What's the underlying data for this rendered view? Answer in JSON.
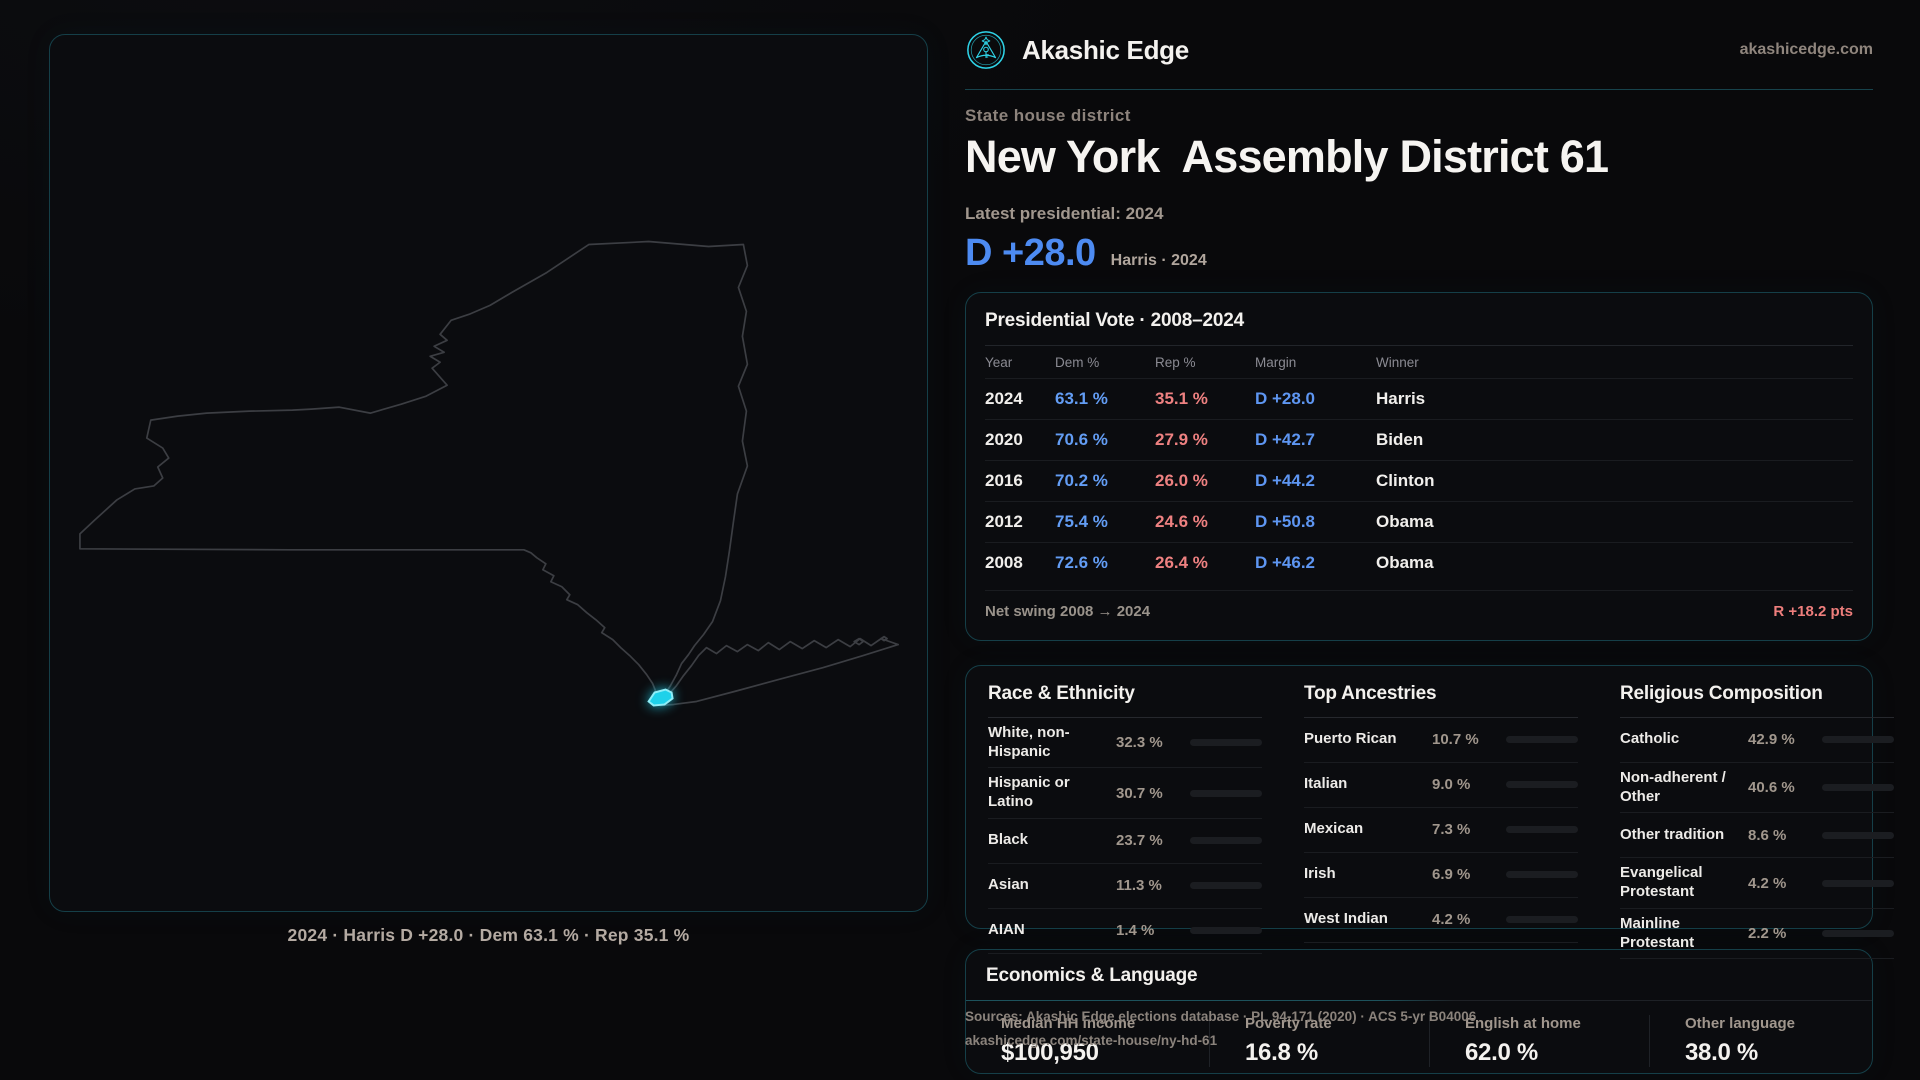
{
  "brand": {
    "name": "Akashic Edge",
    "domain": "akashicedge.com",
    "accent": "#2fd4e8"
  },
  "hero": {
    "kicker": "State house district",
    "title_a": "New York",
    "title_b": "Assembly District 61",
    "latest": "Latest presidential: 2024",
    "margin": "D +28.0",
    "margin_note": "Harris · 2024"
  },
  "map": {
    "caption": "2024 · Harris D +28.0 · Dem 63.1 % · Rep 35.1 %",
    "district_color": "#22d3ee",
    "outline_color": "#3c3e43"
  },
  "vote": {
    "title": "Presidential Vote · 2008–2024",
    "columns": {
      "year": "Year",
      "dem": "Dem %",
      "rep": "Rep %",
      "margin": "Margin",
      "winner": "Winner"
    },
    "rows": [
      {
        "year": "2024",
        "dem": "63.1 %",
        "rep": "35.1 %",
        "margin": "D +28.0",
        "winner": "Harris"
      },
      {
        "year": "2020",
        "dem": "70.6 %",
        "rep": "27.9 %",
        "margin": "D +42.7",
        "winner": "Biden"
      },
      {
        "year": "2016",
        "dem": "70.2 %",
        "rep": "26.0 %",
        "margin": "D +44.2",
        "winner": "Clinton"
      },
      {
        "year": "2012",
        "dem": "75.4 %",
        "rep": "24.6 %",
        "margin": "D +50.8",
        "winner": "Obama"
      },
      {
        "year": "2008",
        "dem": "72.6 %",
        "rep": "26.4 %",
        "margin": "D +46.2",
        "winner": "Obama"
      }
    ],
    "swing_label": "Net swing 2008 → 2024",
    "swing_value": "R +18.2 pts"
  },
  "demographics": {
    "race": {
      "title": "Race & Ethnicity",
      "rows": [
        {
          "label": "White, non-Hispanic",
          "value": "32.3 %",
          "pct": 32.3,
          "color": "#96a1bf"
        },
        {
          "label": "Hispanic or Latino",
          "value": "30.7 %",
          "pct": 30.7,
          "color": "#e4a23d"
        },
        {
          "label": "Black",
          "value": "23.7 %",
          "pct": 23.7,
          "color": "#9c8df2"
        },
        {
          "label": "Asian",
          "value": "11.3 %",
          "pct": 11.3,
          "color": "#2fbf8f"
        },
        {
          "label": "AIAN",
          "value": "1.4 %",
          "pct": 1.4,
          "color": "#b25d22"
        }
      ]
    },
    "ancestry": {
      "title": "Top Ancestries",
      "rows": [
        {
          "label": "Puerto Rican",
          "value": "10.7 %",
          "pct": 10.7,
          "color": "#e4a23d"
        },
        {
          "label": "Italian",
          "value": "9.0 %",
          "pct": 9.0,
          "color": "#8fb3cf"
        },
        {
          "label": "Mexican",
          "value": "7.3 %",
          "pct": 7.3,
          "color": "#e4a23d"
        },
        {
          "label": "Irish",
          "value": "6.9 %",
          "pct": 6.9,
          "color": "#8fb3cf"
        },
        {
          "label": "West Indian",
          "value": "4.2 %",
          "pct": 4.2,
          "color": "#8f7ff0"
        }
      ]
    },
    "religion": {
      "title": "Religious Composition",
      "rows": [
        {
          "label": "Catholic",
          "value": "42.9 %",
          "pct": 42.9,
          "color": "#dfaf2e"
        },
        {
          "label": "Non-adherent / Other",
          "value": "40.6 %",
          "pct": 40.6,
          "color": "#7d8799"
        },
        {
          "label": "Other tradition",
          "value": "8.6 %",
          "pct": 8.6,
          "color": "#97a0ae"
        },
        {
          "label": "Evangelical Protestant",
          "value": "4.2 %",
          "pct": 4.2,
          "color": "#e2605e"
        },
        {
          "label": "Mainline Protestant",
          "value": "2.2 %",
          "pct": 2.2,
          "color": "#3f87e8"
        }
      ]
    }
  },
  "economics": {
    "title": "Economics & Language",
    "stats": [
      {
        "label": "Median HH income",
        "value": "$100,950"
      },
      {
        "label": "Poverty rate",
        "value": "16.8 %"
      },
      {
        "label": "English at home",
        "value": "62.0 %"
      },
      {
        "label": "Other language",
        "value": "38.0 %"
      }
    ]
  },
  "sources": {
    "line1": "Sources: Akashic Edge elections database · PL 94-171 (2020) · ACS 5-yr B04006",
    "line2": "akashicedge.com/state-house/ny-hd-61"
  },
  "chart_data": [
    {
      "type": "table",
      "title": "Presidential Vote · 2008–2024",
      "columns": [
        "Year",
        "Dem %",
        "Rep %",
        "Margin",
        "Winner"
      ],
      "rows": [
        [
          "2024",
          63.1,
          35.1,
          "D +28.0",
          "Harris"
        ],
        [
          "2020",
          70.6,
          27.9,
          "D +42.7",
          "Biden"
        ],
        [
          "2016",
          70.2,
          26.0,
          "D +44.2",
          "Clinton"
        ],
        [
          "2012",
          75.4,
          24.6,
          "D +50.8",
          "Obama"
        ],
        [
          "2008",
          72.6,
          26.4,
          "D +46.2",
          "Obama"
        ]
      ],
      "footer": {
        "label": "Net swing 2008 → 2024",
        "value": "R +18.2 pts"
      }
    },
    {
      "type": "bar",
      "title": "Race & Ethnicity",
      "categories": [
        "White, non-Hispanic",
        "Hispanic or Latino",
        "Black",
        "Asian",
        "AIAN"
      ],
      "values": [
        32.3,
        30.7,
        23.7,
        11.3,
        1.4
      ],
      "xlim": [
        0,
        100
      ]
    },
    {
      "type": "bar",
      "title": "Top Ancestries",
      "categories": [
        "Puerto Rican",
        "Italian",
        "Mexican",
        "Irish",
        "West Indian"
      ],
      "values": [
        10.7,
        9.0,
        7.3,
        6.9,
        4.2
      ],
      "xlim": [
        0,
        100
      ]
    },
    {
      "type": "bar",
      "title": "Religious Composition",
      "categories": [
        "Catholic",
        "Non-adherent / Other",
        "Other tradition",
        "Evangelical Protestant",
        "Mainline Protestant"
      ],
      "values": [
        42.9,
        40.6,
        8.6,
        4.2,
        2.2
      ],
      "xlim": [
        0,
        100
      ]
    }
  ]
}
